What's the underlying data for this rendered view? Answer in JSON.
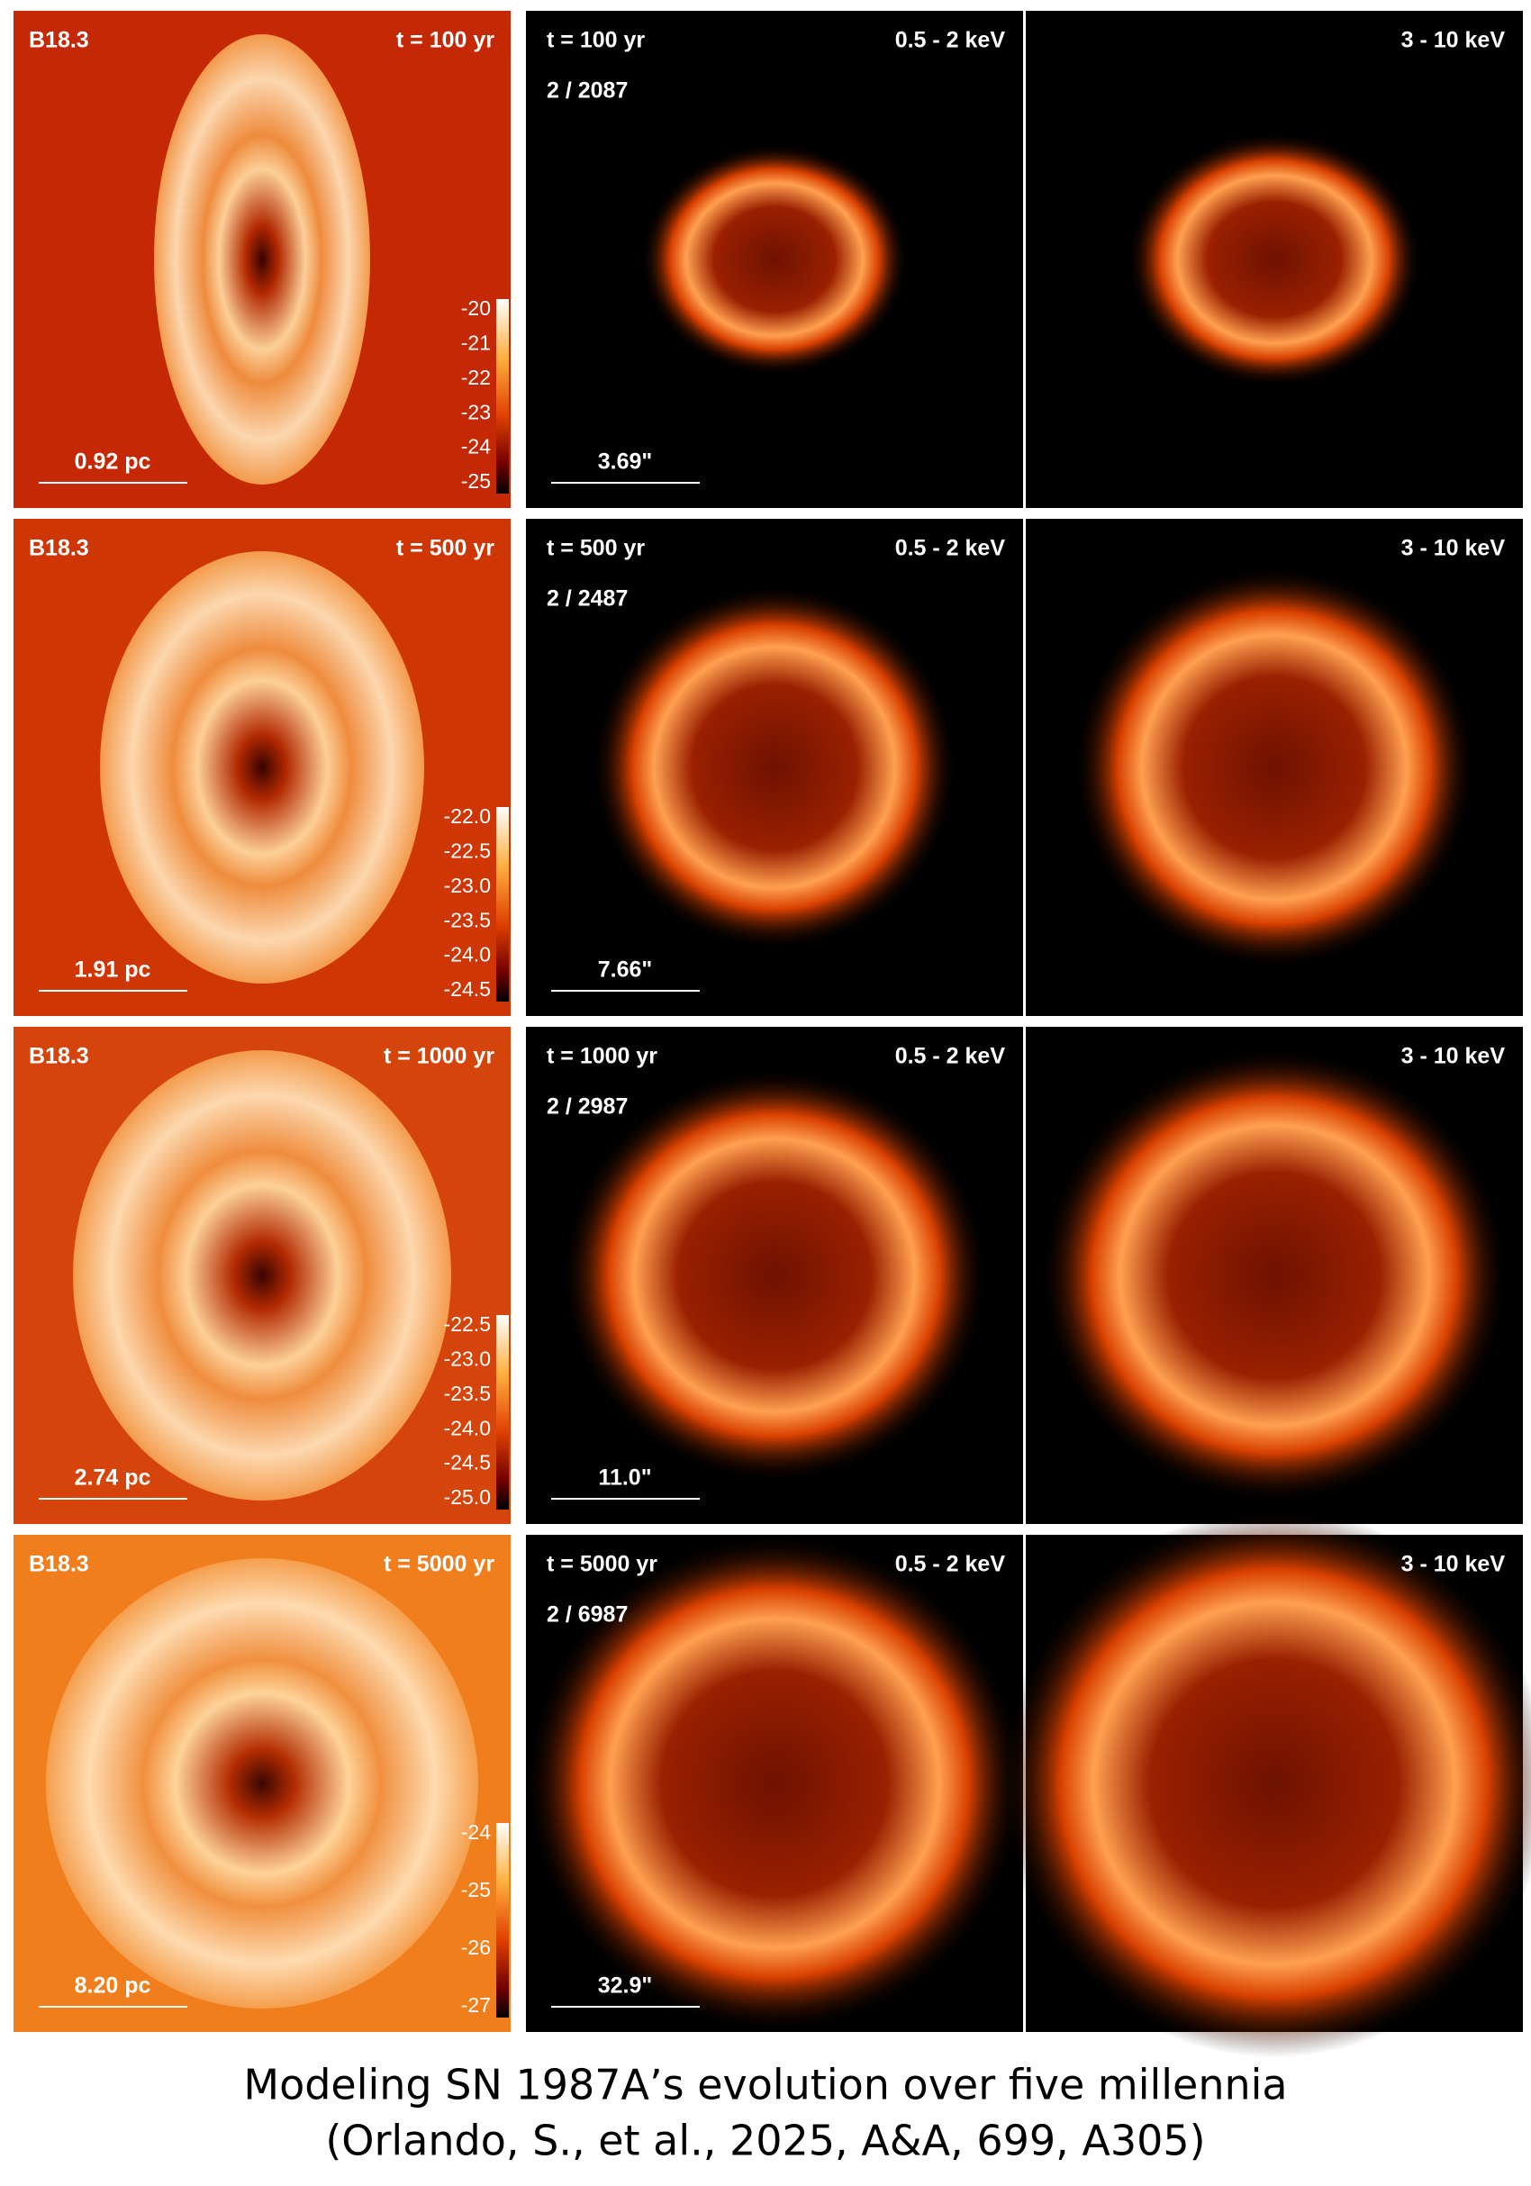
{
  "caption": {
    "line1": "Modeling SN 1987A’s evolution over five millennia",
    "line2": "(Orlando, S., et al., 2025, A&A, 699, A305)"
  },
  "rows": [
    {
      "model": "B18.3",
      "time": "t = 100 yr",
      "scale_pc": "0.92 pc",
      "colorbar": [
        "-20",
        "-21",
        "-22",
        "-23",
        "-24",
        "-25"
      ],
      "band_soft": "0.5 - 2 keV",
      "band_hard": "3 - 10 keV",
      "counts": "2 / 2087",
      "scale_arcsec": "3.69\""
    },
    {
      "model": "B18.3",
      "time": "t = 500 yr",
      "scale_pc": "1.91 pc",
      "colorbar": [
        "-22.0",
        "-22.5",
        "-23.0",
        "-23.5",
        "-24.0",
        "-24.5"
      ],
      "band_soft": "0.5 - 2 keV",
      "band_hard": "3 - 10 keV",
      "counts": "2 / 2487",
      "scale_arcsec": "7.66\""
    },
    {
      "model": "B18.3",
      "time": "t = 1000 yr",
      "scale_pc": "2.74 pc",
      "colorbar": [
        "-22.5",
        "-23.0",
        "-23.5",
        "-24.0",
        "-24.5",
        "-25.0"
      ],
      "band_soft": "0.5 - 2 keV",
      "band_hard": "3 - 10 keV",
      "counts": "2 / 2987",
      "scale_arcsec": "11.0\""
    },
    {
      "model": "B18.3",
      "time": "t = 5000 yr",
      "scale_pc": "8.20 pc",
      "colorbar": [
        "-24",
        "-25",
        "-26",
        "-27"
      ],
      "band_soft": "0.5 - 2 keV",
      "band_hard": "3 - 10 keV",
      "counts": "2 / 6987",
      "scale_arcsec": "32.9\""
    }
  ]
}
